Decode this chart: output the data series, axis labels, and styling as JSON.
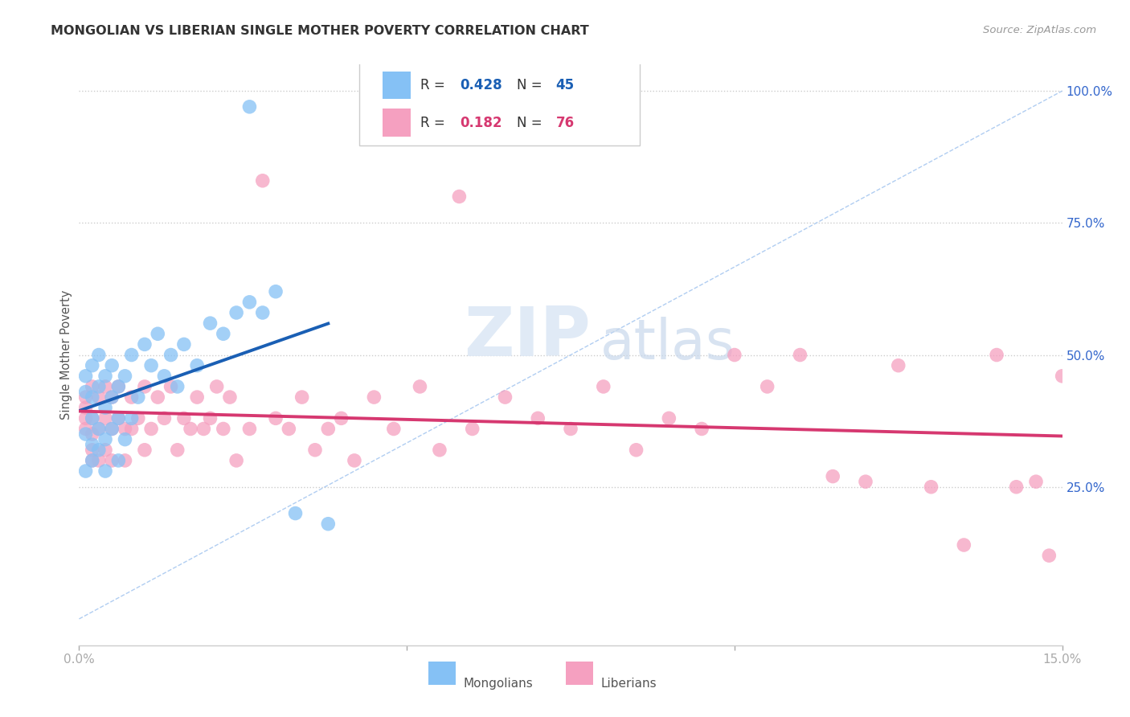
{
  "title": "MONGOLIAN VS LIBERIAN SINGLE MOTHER POVERTY CORRELATION CHART",
  "source": "Source: ZipAtlas.com",
  "ylabel": "Single Mother Poverty",
  "mongolian_R": 0.428,
  "mongolian_N": 45,
  "liberian_R": 0.182,
  "liberian_N": 76,
  "mongolian_color": "#85c1f5",
  "liberian_color": "#f5a0c0",
  "trend_mongolian_color": "#1a5fb4",
  "trend_liberian_color": "#d63870",
  "diagonal_color": "#a8c8f0",
  "background_color": "#ffffff",
  "watermark_zip": "ZIP",
  "watermark_atlas": "atlas",
  "xlim": [
    0,
    0.15
  ],
  "ylim": [
    -0.05,
    1.05
  ],
  "right_yticks": [
    0.0,
    0.25,
    0.5,
    0.75,
    1.0
  ],
  "right_yticklabels": [
    "",
    "25.0%",
    "50.0%",
    "75.0%",
    "100.0%"
  ],
  "grid_yvals": [
    0.25,
    0.5,
    0.75,
    1.0
  ],
  "xtick_positions": [
    0.0,
    0.05,
    0.1,
    0.15
  ],
  "xtick_labels": [
    "0.0%",
    "",
    "",
    "15.0%"
  ]
}
